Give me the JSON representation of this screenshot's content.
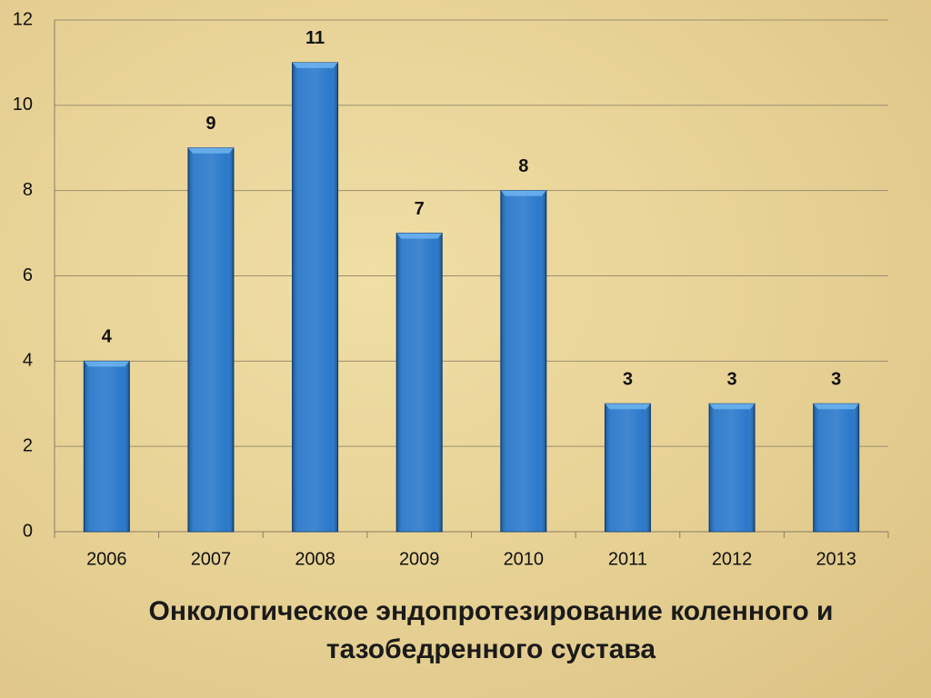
{
  "chart_data": {
    "type": "bar",
    "title": "Онкологическое эндопротезирование коленного и тазобедренного сустава",
    "categories": [
      "2006",
      "2007",
      "2008",
      "2009",
      "2010",
      "2011",
      "2012",
      "2013"
    ],
    "values": [
      4,
      9,
      11,
      7,
      8,
      3,
      3,
      3
    ],
    "color": "#1f72c8",
    "ylim": [
      0,
      12
    ],
    "yticks": [
      0,
      2,
      4,
      6,
      8,
      10,
      12
    ],
    "grid": true
  }
}
